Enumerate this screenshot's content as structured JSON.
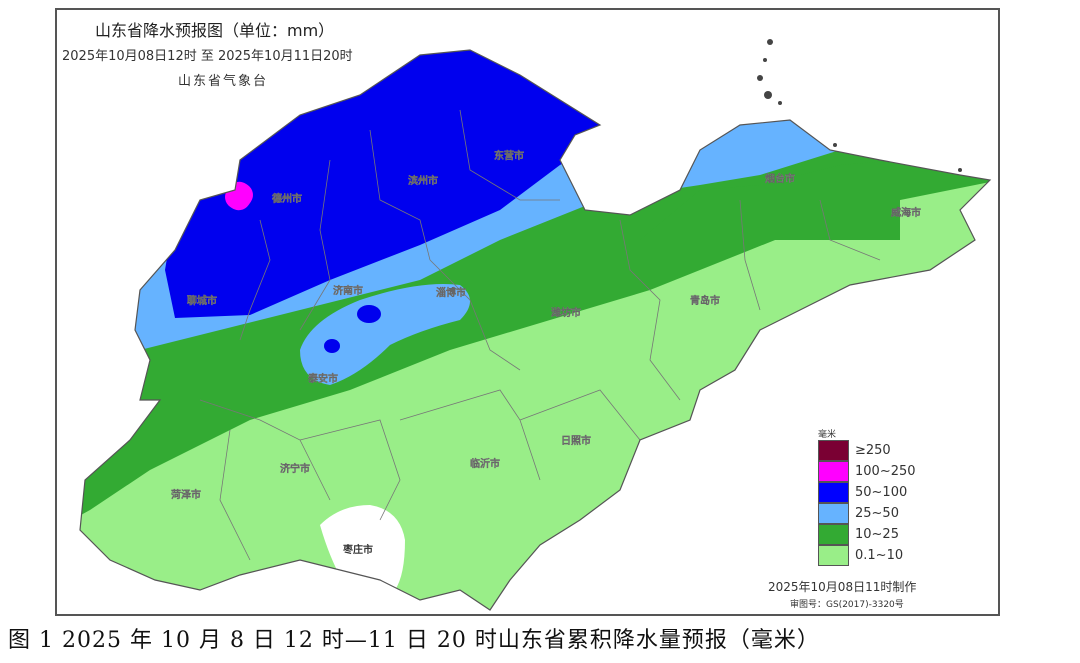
{
  "map": {
    "title": "山东省降水预报图（单位：mm）",
    "period": "2025年10月08日12时  至  2025年10月11日20时",
    "issuer": "山东省气象台",
    "cities": [
      "德州市",
      "滨州市",
      "东营市",
      "聊城市",
      "济南市",
      "淄博市",
      "潍坊市",
      "泰安市",
      "烟台市",
      "威海市",
      "青岛市",
      "日照市",
      "临沂市",
      "济宁市",
      "菏泽市",
      "枣庄市"
    ],
    "legend": {
      "unit": "毫米",
      "items": [
        {
          "label": "≥250",
          "color": "#7a0033"
        },
        {
          "label": "100~250",
          "color": "#ff00ff"
        },
        {
          "label": "50~100",
          "color": "#0000ff"
        },
        {
          "label": "25~50",
          "color": "#66b3ff"
        },
        {
          "label": "10~25",
          "color": "#33aa33"
        },
        {
          "label": "0.1~10",
          "color": "#99ee88"
        }
      ]
    },
    "made_time": "2025年10月08日11时制作",
    "review_no": "审图号：GS(2017)-3320号"
  },
  "caption": "图 1 2025 年 10 月 8 日 12 时—11 日 20 时山东省累积降水量预报（毫米）"
}
